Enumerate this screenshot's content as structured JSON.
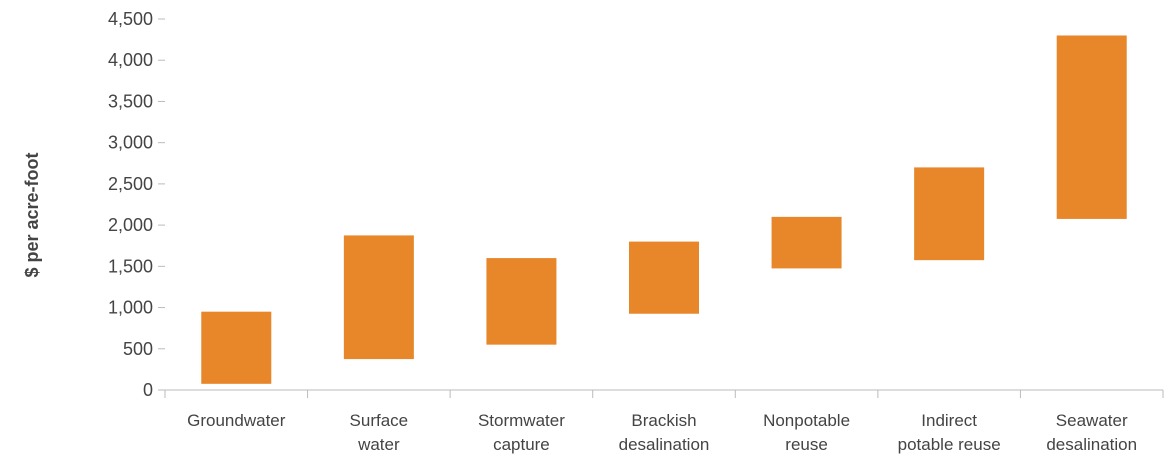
{
  "chart_data": {
    "type": "bar",
    "subtype": "floating-range",
    "title": "",
    "xlabel": "",
    "ylabel": "$ per acre-foot",
    "ylim": [
      0,
      4500
    ],
    "yticks": [
      0,
      500,
      1000,
      1500,
      2000,
      2500,
      3000,
      3500,
      4000,
      4500
    ],
    "ytick_labels": [
      "0",
      "500",
      "1,000",
      "1,500",
      "2,000",
      "2,500",
      "3,000",
      "3,500",
      "4,000",
      "4,500"
    ],
    "grid": false,
    "legend": "none",
    "bar_color": "#E8862A",
    "axis_color": "#bbbbbb",
    "text_color": "#444444",
    "categories": [
      [
        "Groundwater"
      ],
      [
        "Surface",
        "water"
      ],
      [
        "Stormwater",
        "capture"
      ],
      [
        "Brackish",
        "desalination"
      ],
      [
        "Nonpotable",
        "reuse"
      ],
      [
        "Indirect",
        "potable reuse"
      ],
      [
        "Seawater",
        "desalination"
      ]
    ],
    "low": [
      75,
      375,
      550,
      925,
      1475,
      1575,
      2075
    ],
    "high": [
      950,
      1875,
      1600,
      1800,
      2100,
      2700,
      4300
    ]
  }
}
